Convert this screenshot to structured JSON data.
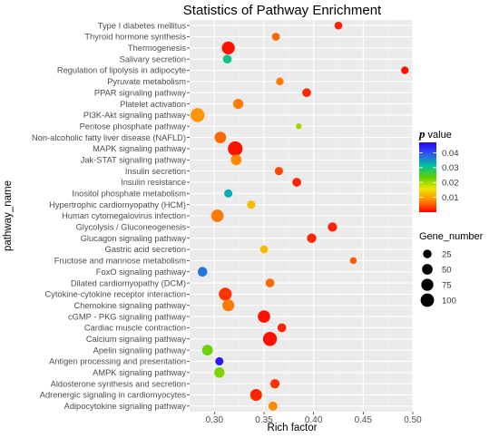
{
  "chart_data": {
    "type": "scatter",
    "title": "Statistics of Pathway Enrichment",
    "xlabel": "Rich factor",
    "ylabel": "pathway_name",
    "xlim": [
      0.275,
      0.5
    ],
    "xticks": [
      0.3,
      0.35,
      0.4,
      0.45,
      0.5
    ],
    "xtick_labels": [
      "0.30",
      "0.35",
      "0.40",
      "0.45",
      "0.50"
    ],
    "grid": true,
    "color_legend": {
      "title_bold": "p",
      "title_rest": " value",
      "min": 0.0,
      "max": 0.047,
      "ticks": [
        0.01,
        0.02,
        0.03,
        0.04
      ],
      "tick_labels": [
        "0.01",
        "0.02",
        "0.03",
        "0.04"
      ],
      "colors": [
        "#ff0000",
        "#ff8800",
        "#f2e600",
        "#5fd000",
        "#00c2a0",
        "#2f57f0",
        "#2b00ff"
      ]
    },
    "size_legend": {
      "title": "Gene_number",
      "values": [
        25,
        50,
        75,
        100
      ],
      "labels": [
        "25",
        "50",
        "75",
        "100"
      ]
    },
    "points": [
      {
        "pathway": "Type I diabetes mellitus",
        "rich_factor": 0.425,
        "genes": 18,
        "pvalue": 0.002
      },
      {
        "pathway": "Thyroid hormone synthesis",
        "rich_factor": 0.362,
        "genes": 20,
        "pvalue": 0.006
      },
      {
        "pathway": "Thermogenesis",
        "rich_factor": 0.314,
        "genes": 90,
        "pvalue": 0.001
      },
      {
        "pathway": "Salivary secretion",
        "rich_factor": 0.313,
        "genes": 28,
        "pvalue": 0.03
      },
      {
        "pathway": "Regulation of lipolysis in adipocyte",
        "rich_factor": 0.492,
        "genes": 16,
        "pvalue": 0.001
      },
      {
        "pathway": "Pyruvate metabolism",
        "rich_factor": 0.366,
        "genes": 17,
        "pvalue": 0.007
      },
      {
        "pathway": "PPAR signaling pathway",
        "rich_factor": 0.393,
        "genes": 27,
        "pvalue": 0.002
      },
      {
        "pathway": "Platelet activation",
        "rich_factor": 0.324,
        "genes": 45,
        "pvalue": 0.007
      },
      {
        "pathway": "PI3K-Akt signaling pathway",
        "rich_factor": 0.283,
        "genes": 110,
        "pvalue": 0.009
      },
      {
        "pathway": "Pentose phosphate pathway",
        "rich_factor": 0.385,
        "genes": 5,
        "pvalue": 0.02
      },
      {
        "pathway": "Non-alcoholic fatty liver disease (NAFLD)",
        "rich_factor": 0.306,
        "genes": 65,
        "pvalue": 0.006
      },
      {
        "pathway": "MAPK signaling pathway",
        "rich_factor": 0.321,
        "genes": 125,
        "pvalue": 0.001
      },
      {
        "pathway": "Jak-STAT signaling pathway",
        "rich_factor": 0.322,
        "genes": 52,
        "pvalue": 0.008
      },
      {
        "pathway": "Insulin secretion",
        "rich_factor": 0.365,
        "genes": 22,
        "pvalue": 0.004
      },
      {
        "pathway": "Insulin resistance",
        "rich_factor": 0.383,
        "genes": 28,
        "pvalue": 0.002
      },
      {
        "pathway": "Inositol phosphate metabolism",
        "rich_factor": 0.314,
        "genes": 22,
        "pvalue": 0.033
      },
      {
        "pathway": "Hypertrophic cardiomyopathy (HCM)",
        "rich_factor": 0.337,
        "genes": 23,
        "pvalue": 0.012
      },
      {
        "pathway": "Human cytomegalovirus infection",
        "rich_factor": 0.303,
        "genes": 80,
        "pvalue": 0.007
      },
      {
        "pathway": "Glycolysis / Gluconeogenesis",
        "rich_factor": 0.419,
        "genes": 33,
        "pvalue": 0.002
      },
      {
        "pathway": "Glucagon signaling pathway",
        "rich_factor": 0.398,
        "genes": 35,
        "pvalue": 0.002
      },
      {
        "pathway": "Gastric acid secretion",
        "rich_factor": 0.35,
        "genes": 20,
        "pvalue": 0.012
      },
      {
        "pathway": "Fructose and mannose metabolism",
        "rich_factor": 0.44,
        "genes": 10,
        "pvalue": 0.005
      },
      {
        "pathway": "FoxO signaling pathway",
        "rich_factor": 0.288,
        "genes": 37,
        "pvalue": 0.037
      },
      {
        "pathway": "Dilated cardiomyopathy (DCM)",
        "rich_factor": 0.356,
        "genes": 28,
        "pvalue": 0.006
      },
      {
        "pathway": "Cytokine-cytokine receptor interaction",
        "rich_factor": 0.311,
        "genes": 90,
        "pvalue": 0.003
      },
      {
        "pathway": "Chemokine signaling pathway",
        "rich_factor": 0.314,
        "genes": 70,
        "pvalue": 0.007
      },
      {
        "pathway": "cGMP - PKG signaling pathway",
        "rich_factor": 0.35,
        "genes": 80,
        "pvalue": 0.001
      },
      {
        "pathway": "Cardiac muscle contraction",
        "rich_factor": 0.368,
        "genes": 28,
        "pvalue": 0.002
      },
      {
        "pathway": "Calcium signaling pathway",
        "rich_factor": 0.356,
        "genes": 112,
        "pvalue": 0.001
      },
      {
        "pathway": "Apelin signaling pathway",
        "rich_factor": 0.293,
        "genes": 50,
        "pvalue": 0.023
      },
      {
        "pathway": "Antigen processing and presentation",
        "rich_factor": 0.305,
        "genes": 22,
        "pvalue": 0.045
      },
      {
        "pathway": "AMPK signaling pathway",
        "rich_factor": 0.305,
        "genes": 48,
        "pvalue": 0.022
      },
      {
        "pathway": "Aldosterone synthesis and secretion",
        "rich_factor": 0.361,
        "genes": 35,
        "pvalue": 0.003
      },
      {
        "pathway": "Adrenergic signaling in cardiomyocytes",
        "rich_factor": 0.342,
        "genes": 70,
        "pvalue": 0.002
      },
      {
        "pathway": "Adipocytokine signaling pathway",
        "rich_factor": 0.359,
        "genes": 30,
        "pvalue": 0.008
      }
    ]
  }
}
